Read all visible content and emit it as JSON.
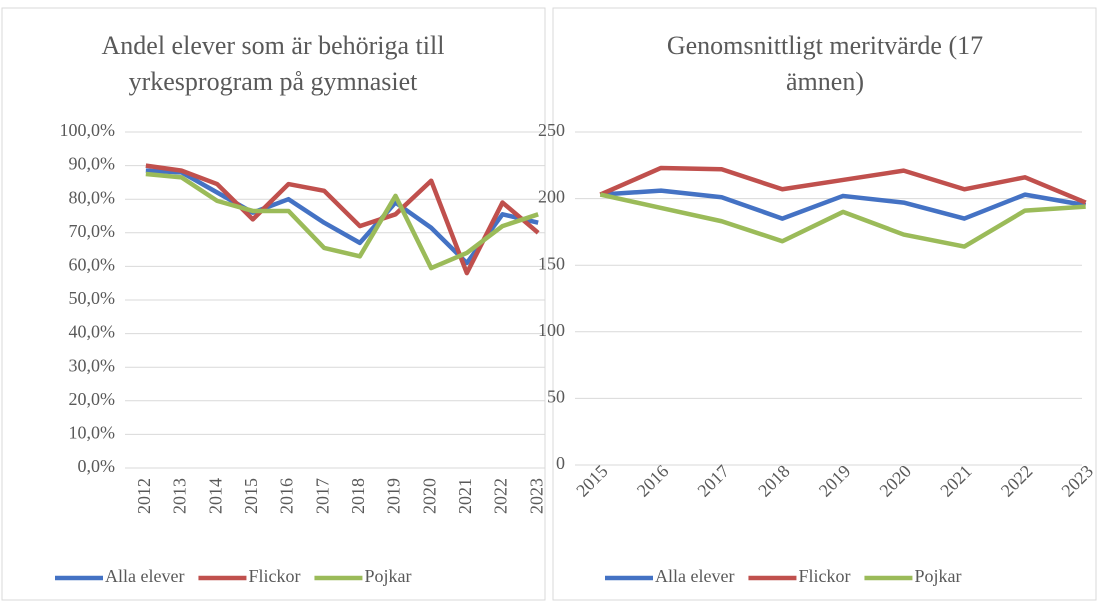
{
  "chart_data": [
    {
      "type": "line",
      "title": [
        "Andel elever som är behöriga till",
        "yrkesprogram på gymnasiet"
      ],
      "categories": [
        "2012",
        "2013",
        "2014",
        "2015",
        "2016",
        "2017",
        "2018",
        "2019",
        "2020",
        "2021",
        "2022",
        "2023"
      ],
      "series": [
        {
          "name": "Alla elever",
          "color": "#4472c4",
          "values": [
            88.5,
            88,
            82,
            76,
            80,
            73,
            67,
            79,
            71.5,
            61,
            75.5,
            73
          ]
        },
        {
          "name": "Flickor",
          "color": "#c0504d",
          "values": [
            90,
            88.5,
            84.5,
            74,
            84.5,
            82.5,
            72,
            75.5,
            85.5,
            58,
            79,
            70
          ]
        },
        {
          "name": "Pojkar",
          "color": "#9bbb59",
          "values": [
            87.5,
            86.5,
            79.5,
            76.5,
            76.5,
            65.5,
            63,
            81,
            59.5,
            64,
            72,
            75.5
          ]
        }
      ],
      "ylim": [
        0,
        100
      ],
      "yticks": [
        {
          "value": 0,
          "label": "0,0%"
        },
        {
          "value": 10,
          "label": "10,0%"
        },
        {
          "value": 20,
          "label": "20,0%"
        },
        {
          "value": 30,
          "label": "30,0%"
        },
        {
          "value": 40,
          "label": "40,0%"
        },
        {
          "value": 50,
          "label": "50,0%"
        },
        {
          "value": 60,
          "label": "60,0%"
        },
        {
          "value": 70,
          "label": "70,0%"
        },
        {
          "value": 80,
          "label": "80,0%"
        },
        {
          "value": 90,
          "label": "90,0%"
        },
        {
          "value": 100,
          "label": "100,0%"
        }
      ],
      "grid": true,
      "legend": "bottom"
    },
    {
      "type": "line",
      "title": [
        "Genomsnittligt meritvärde (17",
        "ämnen)"
      ],
      "categories": [
        "2015",
        "2016",
        "2017",
        "2018",
        "2019",
        "2020",
        "2021",
        "2022",
        "2023"
      ],
      "series": [
        {
          "name": "Alla elever",
          "color": "#4472c4",
          "values": [
            203,
            206,
            201,
            185,
            202,
            197,
            185,
            203,
            195
          ]
        },
        {
          "name": "Flickor",
          "color": "#c0504d",
          "values": [
            203,
            223,
            222,
            207,
            214,
            221,
            207,
            216,
            197
          ]
        },
        {
          "name": "Pojkar",
          "color": "#9bbb59",
          "values": [
            203,
            193,
            183,
            168,
            190,
            173,
            164,
            191,
            194
          ]
        }
      ],
      "ylim": [
        0,
        250
      ],
      "yticks": [
        0,
        50,
        100,
        150,
        200,
        250
      ],
      "grid": true,
      "legend": "bottom"
    }
  ]
}
